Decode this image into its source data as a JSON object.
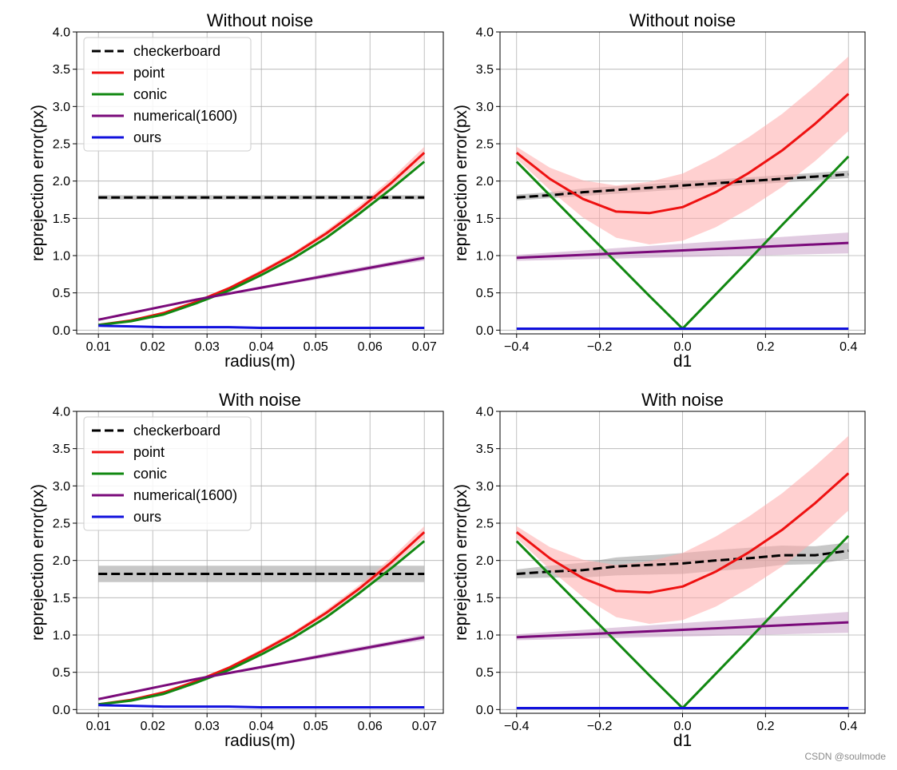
{
  "watermark": "CSDN @soulmode",
  "chart_data": [
    {
      "type": "line",
      "title": "Without noise",
      "xlabel": "radius(m)",
      "ylabel": "reprejection error(px)",
      "xlim": [
        0.006,
        0.0735
      ],
      "ylim": [
        -0.05,
        4.0
      ],
      "xticks": [
        0.01,
        0.02,
        0.03,
        0.04,
        0.05,
        0.06,
        0.07
      ],
      "xtick_labels": [
        "0.01",
        "0.02",
        "0.03",
        "0.04",
        "0.05",
        "0.06",
        "0.07"
      ],
      "yticks": [
        0.0,
        0.5,
        1.0,
        1.5,
        2.0,
        2.5,
        3.0,
        3.5,
        4.0
      ],
      "ytick_labels": [
        "0.0",
        "0.5",
        "1.0",
        "1.5",
        "2.0",
        "2.5",
        "3.0",
        "3.5",
        "4.0"
      ],
      "grid": true,
      "legend": "top-left",
      "x": [
        0.01,
        0.016,
        0.022,
        0.028,
        0.034,
        0.04,
        0.046,
        0.052,
        0.058,
        0.064,
        0.07
      ],
      "series": [
        {
          "name": "checkerboard",
          "color": "#000000",
          "dash": true,
          "values": [
            1.78,
            1.78,
            1.78,
            1.78,
            1.78,
            1.78,
            1.78,
            1.78,
            1.78,
            1.78,
            1.78
          ],
          "band": [
            0.03,
            0.03,
            0.03,
            0.03,
            0.03,
            0.03,
            0.03,
            0.03,
            0.03,
            0.03,
            0.03
          ],
          "band_color": "#999999"
        },
        {
          "name": "point",
          "color": "#ee1111",
          "values": [
            0.07,
            0.13,
            0.23,
            0.38,
            0.56,
            0.78,
            1.02,
            1.3,
            1.62,
            1.98,
            2.38
          ],
          "band": [
            0.01,
            0.01,
            0.01,
            0.02,
            0.02,
            0.03,
            0.03,
            0.04,
            0.05,
            0.06,
            0.08
          ],
          "band_color": "#ffaaaa"
        },
        {
          "name": "conic",
          "color": "#118811",
          "values": [
            0.07,
            0.12,
            0.21,
            0.36,
            0.53,
            0.74,
            0.97,
            1.24,
            1.56,
            1.9,
            2.26
          ]
        },
        {
          "name": "numerical(1600)",
          "color": "#7a0a7a",
          "values": [
            0.14,
            0.23,
            0.32,
            0.41,
            0.49,
            0.57,
            0.65,
            0.73,
            0.81,
            0.89,
            0.97
          ],
          "band": [
            0.01,
            0.01,
            0.01,
            0.01,
            0.01,
            0.02,
            0.02,
            0.03,
            0.03,
            0.03,
            0.04
          ],
          "band_color": "#c8a0c8"
        },
        {
          "name": "ours",
          "color": "#1111dd",
          "values": [
            0.06,
            0.05,
            0.04,
            0.04,
            0.04,
            0.03,
            0.03,
            0.03,
            0.03,
            0.03,
            0.03
          ]
        }
      ]
    },
    {
      "type": "line",
      "title": "Without noise",
      "xlabel": "d1",
      "ylabel": "reprejection error(px)",
      "xlim": [
        -0.44,
        0.44
      ],
      "ylim": [
        -0.05,
        4.0
      ],
      "xticks": [
        -0.4,
        -0.2,
        0.0,
        0.2,
        0.4
      ],
      "xtick_labels": [
        "−0.4",
        "−0.2",
        "0.0",
        "0.2",
        "0.4"
      ],
      "yticks": [
        0.0,
        0.5,
        1.0,
        1.5,
        2.0,
        2.5,
        3.0,
        3.5,
        4.0
      ],
      "ytick_labels": [
        "0.0",
        "0.5",
        "1.0",
        "1.5",
        "2.0",
        "2.5",
        "3.0",
        "3.5",
        "4.0"
      ],
      "grid": true,
      "legend": "none",
      "x": [
        -0.4,
        -0.32,
        -0.24,
        -0.16,
        -0.08,
        0.0,
        0.08,
        0.16,
        0.24,
        0.32,
        0.4
      ],
      "series": [
        {
          "name": "checkerboard",
          "color": "#000000",
          "dash": true,
          "values": [
            1.78,
            1.81,
            1.85,
            1.88,
            1.91,
            1.94,
            1.97,
            2.0,
            2.03,
            2.06,
            2.09
          ],
          "band": [
            0.04,
            0.04,
            0.05,
            0.05,
            0.05,
            0.05,
            0.05,
            0.05,
            0.05,
            0.05,
            0.05
          ],
          "band_color": "#999999"
        },
        {
          "name": "point",
          "color": "#ee1111",
          "values": [
            2.38,
            2.03,
            1.76,
            1.59,
            1.57,
            1.65,
            1.85,
            2.11,
            2.41,
            2.77,
            3.17
          ],
          "band": [
            0.08,
            0.15,
            0.25,
            0.35,
            0.42,
            0.45,
            0.47,
            0.48,
            0.49,
            0.5,
            0.5
          ],
          "band_color": "#ffaaaa"
        },
        {
          "name": "conic",
          "color": "#118811",
          "values": [
            2.26,
            1.81,
            1.36,
            0.91,
            0.46,
            0.02,
            0.48,
            0.94,
            1.41,
            1.87,
            2.33
          ]
        },
        {
          "name": "numerical(1600)",
          "color": "#7a0a7a",
          "values": [
            0.97,
            0.99,
            1.01,
            1.03,
            1.05,
            1.07,
            1.09,
            1.11,
            1.13,
            1.15,
            1.17
          ],
          "band": [
            0.04,
            0.05,
            0.06,
            0.07,
            0.08,
            0.09,
            0.1,
            0.11,
            0.12,
            0.13,
            0.14
          ],
          "band_color": "#c8a0c8"
        },
        {
          "name": "ours",
          "color": "#1111dd",
          "values": [
            0.02,
            0.02,
            0.02,
            0.02,
            0.02,
            0.02,
            0.02,
            0.02,
            0.02,
            0.02,
            0.02
          ]
        }
      ]
    },
    {
      "type": "line",
      "title": "With noise",
      "xlabel": "radius(m)",
      "ylabel": "reprejection error(px)",
      "xlim": [
        0.006,
        0.0735
      ],
      "ylim": [
        -0.05,
        4.0
      ],
      "xticks": [
        0.01,
        0.02,
        0.03,
        0.04,
        0.05,
        0.06,
        0.07
      ],
      "xtick_labels": [
        "0.01",
        "0.02",
        "0.03",
        "0.04",
        "0.05",
        "0.06",
        "0.07"
      ],
      "yticks": [
        0.0,
        0.5,
        1.0,
        1.5,
        2.0,
        2.5,
        3.0,
        3.5,
        4.0
      ],
      "ytick_labels": [
        "0.0",
        "0.5",
        "1.0",
        "1.5",
        "2.0",
        "2.5",
        "3.0",
        "3.5",
        "4.0"
      ],
      "grid": true,
      "legend": "top-left",
      "x": [
        0.01,
        0.016,
        0.022,
        0.028,
        0.034,
        0.04,
        0.046,
        0.052,
        0.058,
        0.064,
        0.07
      ],
      "series": [
        {
          "name": "checkerboard",
          "color": "#000000",
          "dash": true,
          "values": [
            1.82,
            1.82,
            1.82,
            1.82,
            1.82,
            1.82,
            1.82,
            1.82,
            1.82,
            1.82,
            1.82
          ],
          "band": [
            0.11,
            0.11,
            0.11,
            0.11,
            0.11,
            0.11,
            0.11,
            0.11,
            0.11,
            0.11,
            0.11
          ],
          "band_color": "#999999"
        },
        {
          "name": "point",
          "color": "#ee1111",
          "values": [
            0.07,
            0.13,
            0.23,
            0.38,
            0.56,
            0.78,
            1.02,
            1.3,
            1.62,
            1.98,
            2.38
          ],
          "band": [
            0.01,
            0.01,
            0.01,
            0.02,
            0.02,
            0.03,
            0.03,
            0.04,
            0.05,
            0.06,
            0.08
          ],
          "band_color": "#ffaaaa"
        },
        {
          "name": "conic",
          "color": "#118811",
          "values": [
            0.07,
            0.12,
            0.21,
            0.36,
            0.53,
            0.74,
            0.97,
            1.24,
            1.56,
            1.9,
            2.26
          ]
        },
        {
          "name": "numerical(1600)",
          "color": "#7a0a7a",
          "values": [
            0.14,
            0.23,
            0.32,
            0.41,
            0.49,
            0.57,
            0.65,
            0.73,
            0.81,
            0.89,
            0.97
          ],
          "band": [
            0.01,
            0.01,
            0.01,
            0.01,
            0.01,
            0.02,
            0.02,
            0.03,
            0.03,
            0.03,
            0.04
          ],
          "band_color": "#c8a0c8"
        },
        {
          "name": "ours",
          "color": "#1111dd",
          "values": [
            0.06,
            0.05,
            0.04,
            0.04,
            0.04,
            0.03,
            0.03,
            0.03,
            0.03,
            0.03,
            0.03
          ]
        }
      ]
    },
    {
      "type": "line",
      "title": "With noise",
      "xlabel": "d1",
      "ylabel": "reprejection error(px)",
      "xlim": [
        -0.44,
        0.44
      ],
      "ylim": [
        -0.05,
        4.0
      ],
      "xticks": [
        -0.4,
        -0.2,
        0.0,
        0.2,
        0.4
      ],
      "xtick_labels": [
        "−0.4",
        "−0.2",
        "0.0",
        "0.2",
        "0.4"
      ],
      "yticks": [
        0.0,
        0.5,
        1.0,
        1.5,
        2.0,
        2.5,
        3.0,
        3.5,
        4.0
      ],
      "ytick_labels": [
        "0.0",
        "0.5",
        "1.0",
        "1.5",
        "2.0",
        "2.5",
        "3.0",
        "3.5",
        "4.0"
      ],
      "grid": true,
      "legend": "none",
      "x": [
        -0.4,
        -0.32,
        -0.24,
        -0.16,
        -0.08,
        0.0,
        0.08,
        0.16,
        0.24,
        0.32,
        0.4
      ],
      "series": [
        {
          "name": "checkerboard",
          "color": "#000000",
          "dash": true,
          "values": [
            1.82,
            1.85,
            1.87,
            1.92,
            1.94,
            1.96,
            2.0,
            2.03,
            2.07,
            2.07,
            2.13
          ],
          "band": [
            0.06,
            0.08,
            0.1,
            0.12,
            0.13,
            0.14,
            0.14,
            0.14,
            0.13,
            0.12,
            0.11
          ],
          "band_color": "#999999"
        },
        {
          "name": "point",
          "color": "#ee1111",
          "values": [
            2.38,
            2.03,
            1.76,
            1.59,
            1.57,
            1.65,
            1.85,
            2.11,
            2.41,
            2.77,
            3.17
          ],
          "band": [
            0.08,
            0.15,
            0.25,
            0.35,
            0.42,
            0.45,
            0.47,
            0.48,
            0.49,
            0.5,
            0.5
          ],
          "band_color": "#ffaaaa"
        },
        {
          "name": "conic",
          "color": "#118811",
          "values": [
            2.26,
            1.81,
            1.36,
            0.91,
            0.46,
            0.02,
            0.48,
            0.94,
            1.41,
            1.87,
            2.33
          ]
        },
        {
          "name": "numerical(1600)",
          "color": "#7a0a7a",
          "values": [
            0.97,
            0.99,
            1.01,
            1.03,
            1.05,
            1.07,
            1.09,
            1.11,
            1.13,
            1.15,
            1.17
          ],
          "band": [
            0.04,
            0.05,
            0.06,
            0.07,
            0.08,
            0.09,
            0.1,
            0.11,
            0.12,
            0.13,
            0.14
          ],
          "band_color": "#c8a0c8"
        },
        {
          "name": "ours",
          "color": "#1111dd",
          "values": [
            0.02,
            0.02,
            0.02,
            0.02,
            0.02,
            0.02,
            0.02,
            0.02,
            0.02,
            0.02,
            0.02
          ]
        }
      ]
    }
  ]
}
